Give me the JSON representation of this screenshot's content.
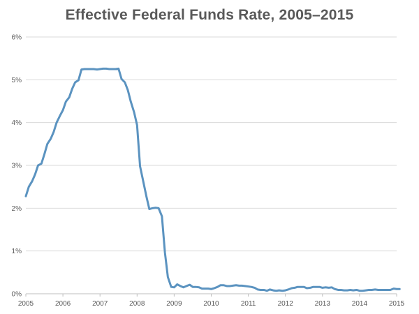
{
  "chart_data": {
    "type": "line",
    "title": "Effective Federal Funds Rate, 2005–2015",
    "xlabel": "",
    "ylabel": "",
    "xlim": [
      2005,
      2015
    ],
    "ylim": [
      0,
      6
    ],
    "y_ticks": [
      0,
      1,
      2,
      3,
      4,
      5,
      6
    ],
    "y_tick_labels": [
      "0%",
      "1%",
      "2%",
      "3%",
      "4%",
      "5%",
      "6%"
    ],
    "x_ticks": [
      2005,
      2006,
      2007,
      2008,
      2009,
      2010,
      2011,
      2012,
      2013,
      2014,
      2015
    ],
    "x_tick_labels": [
      "2005",
      "2006",
      "2007",
      "2008",
      "2009",
      "2010",
      "2011",
      "2012",
      "2013",
      "2014",
      "2015"
    ],
    "grid": true,
    "legend": "none",
    "line_color": "#5b93c0",
    "series": [
      {
        "values": [
          [
            2005.0,
            2.28
          ],
          [
            2005.08,
            2.5
          ],
          [
            2005.17,
            2.63
          ],
          [
            2005.25,
            2.79
          ],
          [
            2005.33,
            3.0
          ],
          [
            2005.42,
            3.04
          ],
          [
            2005.5,
            3.26
          ],
          [
            2005.58,
            3.5
          ],
          [
            2005.67,
            3.62
          ],
          [
            2005.75,
            3.78
          ],
          [
            2005.83,
            4.0
          ],
          [
            2005.92,
            4.16
          ],
          [
            2006.0,
            4.29
          ],
          [
            2006.08,
            4.49
          ],
          [
            2006.17,
            4.59
          ],
          [
            2006.25,
            4.79
          ],
          [
            2006.33,
            4.94
          ],
          [
            2006.42,
            4.99
          ],
          [
            2006.5,
            5.24
          ],
          [
            2006.58,
            5.25
          ],
          [
            2006.67,
            5.25
          ],
          [
            2006.75,
            5.25
          ],
          [
            2006.83,
            5.25
          ],
          [
            2006.92,
            5.24
          ],
          [
            2007.0,
            5.25
          ],
          [
            2007.08,
            5.26
          ],
          [
            2007.17,
            5.26
          ],
          [
            2007.25,
            5.25
          ],
          [
            2007.33,
            5.25
          ],
          [
            2007.42,
            5.25
          ],
          [
            2007.5,
            5.26
          ],
          [
            2007.58,
            5.02
          ],
          [
            2007.67,
            4.94
          ],
          [
            2007.75,
            4.76
          ],
          [
            2007.83,
            4.49
          ],
          [
            2007.92,
            4.24
          ],
          [
            2008.0,
            3.94
          ],
          [
            2008.08,
            2.98
          ],
          [
            2008.17,
            2.61
          ],
          [
            2008.25,
            2.28
          ],
          [
            2008.33,
            1.98
          ],
          [
            2008.42,
            2.0
          ],
          [
            2008.5,
            2.01
          ],
          [
            2008.58,
            2.0
          ],
          [
            2008.67,
            1.81
          ],
          [
            2008.75,
            0.97
          ],
          [
            2008.83,
            0.39
          ],
          [
            2008.92,
            0.16
          ],
          [
            2009.0,
            0.15
          ],
          [
            2009.08,
            0.22
          ],
          [
            2009.17,
            0.18
          ],
          [
            2009.25,
            0.15
          ],
          [
            2009.33,
            0.18
          ],
          [
            2009.42,
            0.21
          ],
          [
            2009.5,
            0.16
          ],
          [
            2009.58,
            0.16
          ],
          [
            2009.67,
            0.15
          ],
          [
            2009.75,
            0.12
          ],
          [
            2009.83,
            0.12
          ],
          [
            2009.92,
            0.12
          ],
          [
            2010.0,
            0.11
          ],
          [
            2010.08,
            0.13
          ],
          [
            2010.17,
            0.16
          ],
          [
            2010.25,
            0.2
          ],
          [
            2010.33,
            0.2
          ],
          [
            2010.42,
            0.18
          ],
          [
            2010.5,
            0.18
          ],
          [
            2010.58,
            0.19
          ],
          [
            2010.67,
            0.2
          ],
          [
            2010.75,
            0.19
          ],
          [
            2010.83,
            0.19
          ],
          [
            2010.92,
            0.18
          ],
          [
            2011.0,
            0.17
          ],
          [
            2011.08,
            0.16
          ],
          [
            2011.17,
            0.14
          ],
          [
            2011.25,
            0.1
          ],
          [
            2011.33,
            0.09
          ],
          [
            2011.42,
            0.09
          ],
          [
            2011.5,
            0.07
          ],
          [
            2011.58,
            0.1
          ],
          [
            2011.67,
            0.08
          ],
          [
            2011.75,
            0.07
          ],
          [
            2011.83,
            0.08
          ],
          [
            2011.92,
            0.07
          ],
          [
            2012.0,
            0.08
          ],
          [
            2012.08,
            0.1
          ],
          [
            2012.17,
            0.13
          ],
          [
            2012.25,
            0.14
          ],
          [
            2012.33,
            0.16
          ],
          [
            2012.42,
            0.16
          ],
          [
            2012.5,
            0.16
          ],
          [
            2012.58,
            0.13
          ],
          [
            2012.67,
            0.14
          ],
          [
            2012.75,
            0.16
          ],
          [
            2012.83,
            0.16
          ],
          [
            2012.92,
            0.16
          ],
          [
            2013.0,
            0.14
          ],
          [
            2013.08,
            0.15
          ],
          [
            2013.17,
            0.14
          ],
          [
            2013.25,
            0.15
          ],
          [
            2013.33,
            0.11
          ],
          [
            2013.42,
            0.09
          ],
          [
            2013.5,
            0.09
          ],
          [
            2013.58,
            0.08
          ],
          [
            2013.67,
            0.08
          ],
          [
            2013.75,
            0.09
          ],
          [
            2013.83,
            0.08
          ],
          [
            2013.92,
            0.09
          ],
          [
            2014.0,
            0.07
          ],
          [
            2014.08,
            0.07
          ],
          [
            2014.17,
            0.08
          ],
          [
            2014.25,
            0.09
          ],
          [
            2014.33,
            0.09
          ],
          [
            2014.42,
            0.1
          ],
          [
            2014.5,
            0.09
          ],
          [
            2014.58,
            0.09
          ],
          [
            2014.67,
            0.09
          ],
          [
            2014.75,
            0.09
          ],
          [
            2014.83,
            0.09
          ],
          [
            2014.92,
            0.12
          ],
          [
            2015.0,
            0.11
          ],
          [
            2015.08,
            0.11
          ]
        ]
      }
    ]
  }
}
